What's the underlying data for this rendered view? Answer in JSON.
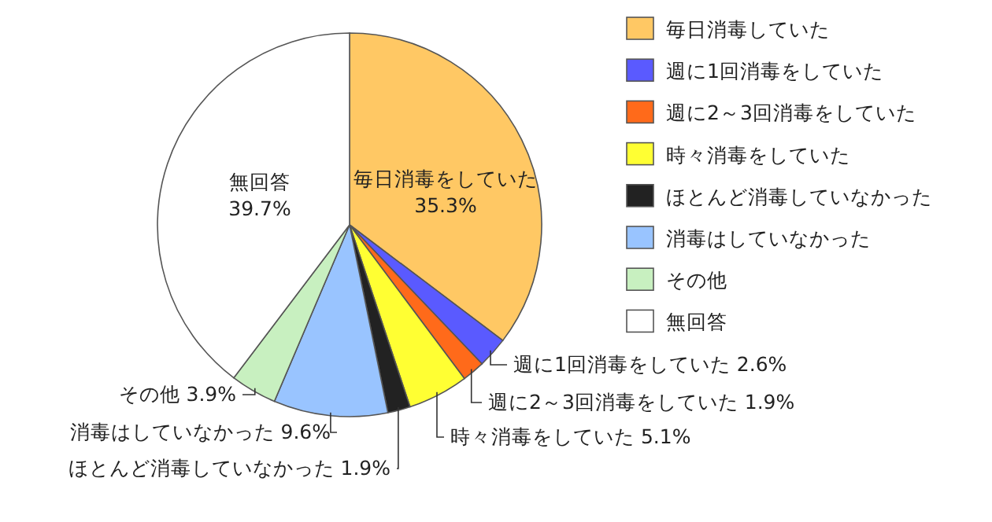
{
  "chart_data": {
    "type": "pie",
    "categories": [
      "毎日消毒していた",
      "週に1回消毒をしていた",
      "週に2～3回消毒をしていた",
      "時々消毒をしていた",
      "ほとんど消毒していなかった",
      "消毒はしていなかった",
      "その他",
      "無回答"
    ],
    "values": [
      35.3,
      2.6,
      1.9,
      5.1,
      1.9,
      9.6,
      3.9,
      39.7
    ],
    "colors": [
      "#ffc864",
      "#5a5aff",
      "#ff6a1a",
      "#ffff33",
      "#222222",
      "#99c4ff",
      "#c8f0c0",
      "#ffffff"
    ],
    "value_labels": [
      "毎日消毒をしていた 35.3%",
      "週に1回消毒をしていた 2.6%",
      "週に2～3回消毒をしていた 1.9%",
      "時々消毒をしていた 5.1%",
      "ほとんど消毒していなかった 1.9%",
      "消毒はしていなかった 9.6%",
      "その他 3.9%",
      "無回答 39.7%"
    ],
    "legend": "right"
  }
}
